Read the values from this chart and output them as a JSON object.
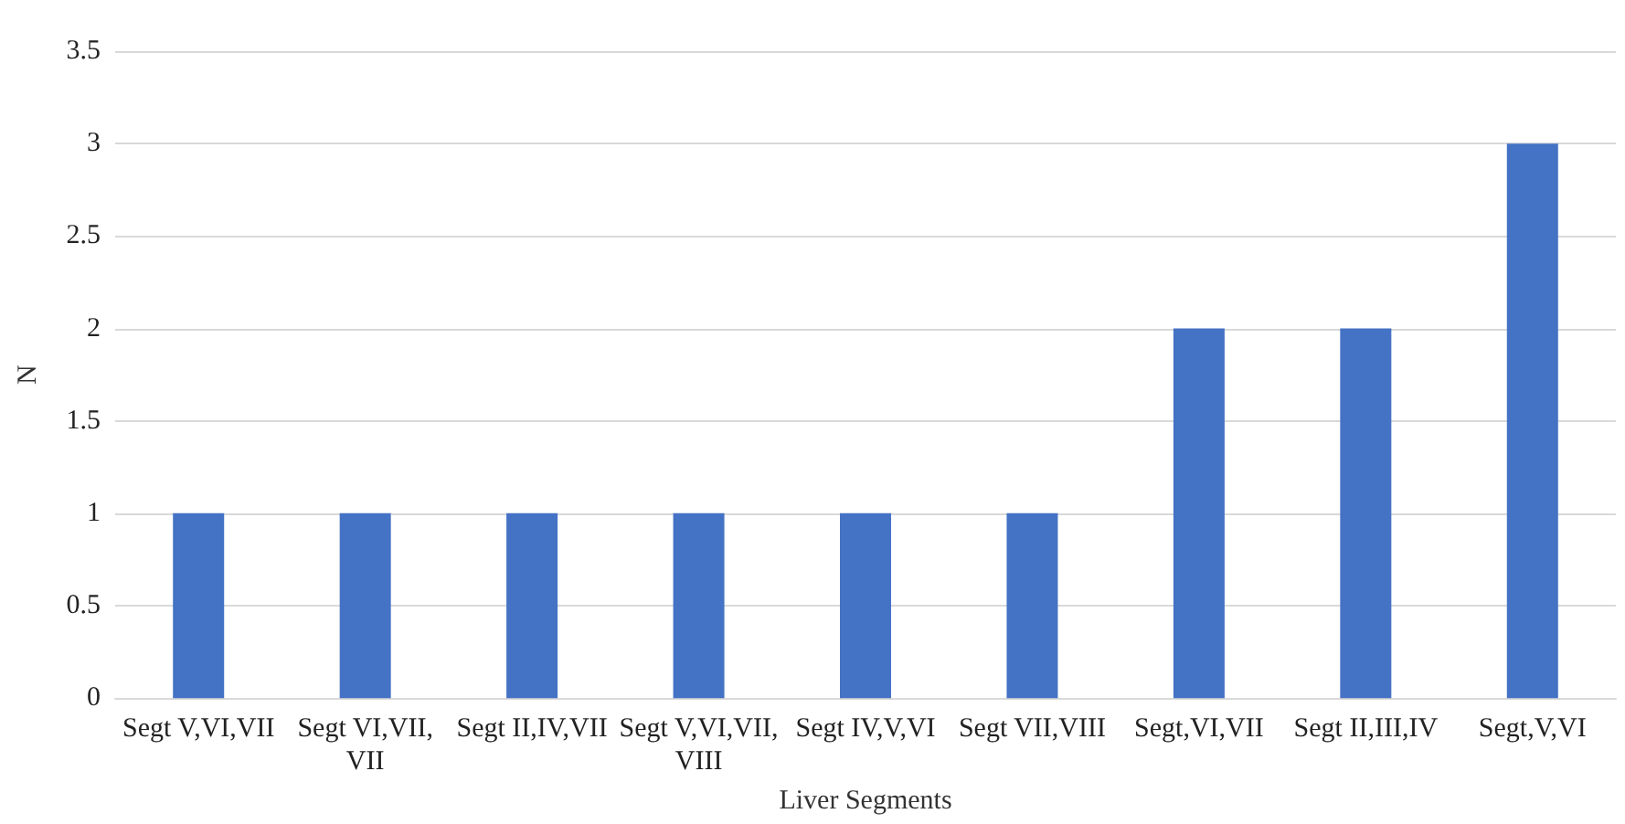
{
  "chart_data": {
    "type": "bar",
    "xlabel": "Liver Segments",
    "ylabel": "N",
    "categories": [
      "Segt V,VI,VII",
      "Segt VI,VII,VII",
      "Segt II,IV,VII",
      "Segt V,VI,VII,VIII",
      "Segt IV,V,VI",
      "Segt VII,VIII",
      "Segt,VI,VII",
      "Segt II,III,IV",
      "Segt,V,VI"
    ],
    "values": [
      1,
      1,
      1,
      1,
      1,
      1,
      2,
      2,
      3
    ],
    "color": "#4472c4",
    "ylim": [
      0,
      3.5
    ],
    "yticks": [
      0,
      0.5,
      1,
      1.5,
      2,
      2.5,
      3,
      3.5
    ],
    "grid": "y"
  }
}
